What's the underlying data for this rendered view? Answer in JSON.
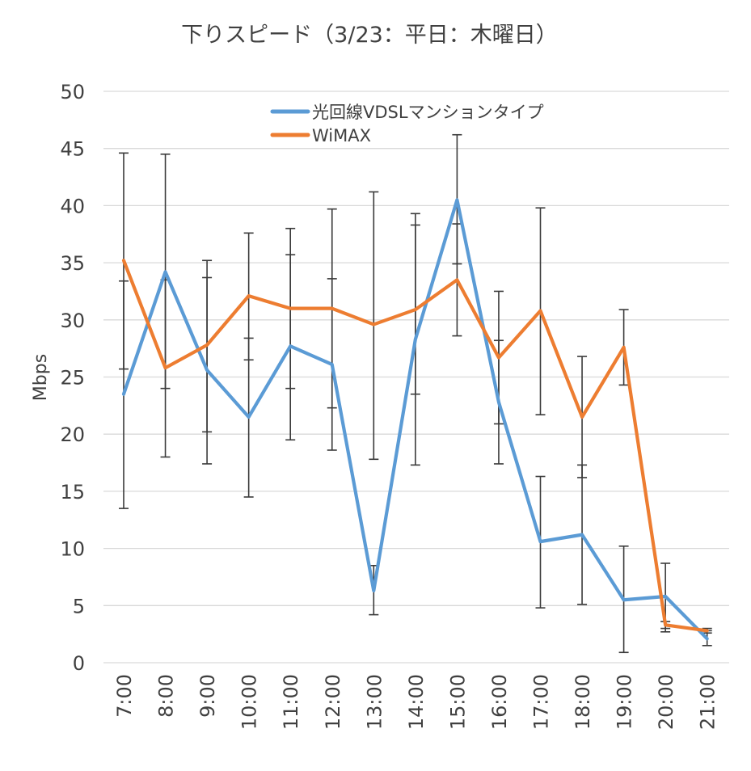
{
  "chart_data": {
    "type": "line",
    "title": "下りスピード（3/23：平日：木曜日）",
    "xlabel": "",
    "ylabel": "Mbps",
    "ylim": [
      0,
      50
    ],
    "yticks": [
      "0",
      "5",
      "10",
      "15",
      "20",
      "25",
      "30",
      "35",
      "40",
      "45",
      "50"
    ],
    "categories": [
      "7:00",
      "8:00",
      "9:00",
      "10:00",
      "11:00",
      "12:00",
      "13:00",
      "14:00",
      "15:00",
      "16:00",
      "17:00",
      "18:00",
      "19:00",
      "20:00",
      "21:00"
    ],
    "grid": true,
    "legend_position": "top-right",
    "series": [
      {
        "name": "光回線VDSLマンションタイプ",
        "color": "#5b9bd5",
        "values": [
          23.5,
          34.2,
          25.6,
          21.5,
          27.7,
          26.1,
          6.3,
          28.3,
          40.5,
          22.8,
          10.6,
          11.2,
          5.5,
          5.8,
          2.1
        ],
        "error_low": [
          13.5,
          24.0,
          20.2,
          14.5,
          19.5,
          18.6,
          4.2,
          17.3,
          34.9,
          17.4,
          4.8,
          5.1,
          0.9,
          2.7,
          1.5
        ],
        "error_high": [
          33.4,
          44.5,
          33.7,
          28.4,
          35.7,
          33.6,
          8.5,
          38.3,
          46.2,
          28.2,
          16.3,
          17.3,
          10.2,
          8.7,
          2.8
        ]
      },
      {
        "name": "WiMAX",
        "color": "#ed7d31",
        "values": [
          35.2,
          25.8,
          27.8,
          32.1,
          31.0,
          31.0,
          29.6,
          30.9,
          33.5,
          26.7,
          30.8,
          21.5,
          27.6,
          3.3,
          2.8
        ],
        "error_low": [
          25.7,
          18.0,
          17.4,
          26.5,
          24.0,
          22.3,
          17.8,
          23.5,
          28.6,
          20.9,
          21.7,
          16.2,
          24.3,
          3.0,
          2.6
        ],
        "error_high": [
          44.6,
          33.5,
          35.2,
          37.6,
          38.0,
          39.7,
          41.2,
          39.3,
          38.4,
          32.5,
          39.8,
          26.8,
          30.9,
          3.6,
          3.0
        ]
      }
    ]
  }
}
